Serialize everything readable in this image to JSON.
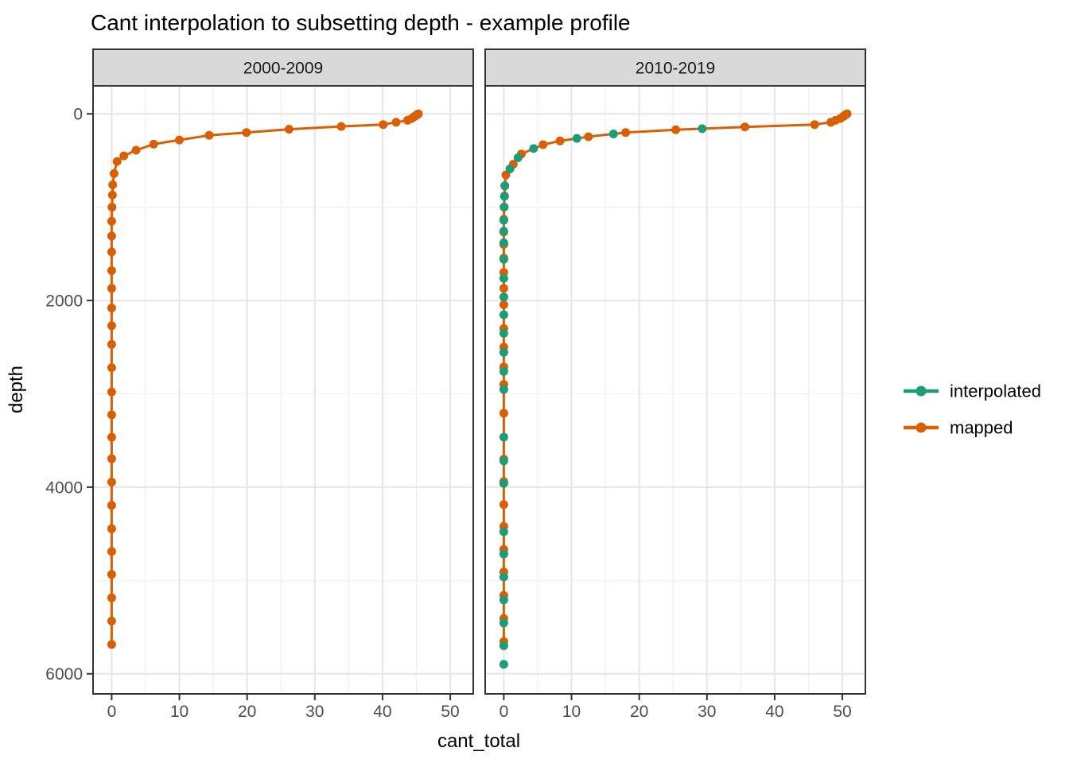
{
  "title": "Cant interpolation to subsetting depth - example profile",
  "legend": {
    "entries": [
      {
        "label": "interpolated",
        "color": "#1B9E77"
      },
      {
        "label": "mapped",
        "color": "#D95F02"
      }
    ]
  },
  "chart_data": {
    "type": "line",
    "title": "Cant interpolation to subsetting depth - example profile",
    "xlabel": "cant_total",
    "ylabel": "depth",
    "x_ticks": [
      0,
      10,
      20,
      30,
      40,
      50
    ],
    "y_ticks": [
      0,
      2000,
      4000,
      6000
    ],
    "x_minor": [
      5,
      15,
      25,
      35,
      45
    ],
    "y_minor": [
      1000,
      3000,
      5000
    ],
    "xlim": [
      -2.75,
      53.4
    ],
    "ylim": [
      -300,
      6215
    ],
    "y_axis_reversed": true,
    "grid": true,
    "legend_position": "right",
    "facets": [
      {
        "label": "2000-2009",
        "series": [
          {
            "name": "mapped",
            "color": "#D95F02",
            "line": true,
            "points": [
              [
                45.3,
                0
              ],
              [
                45.1,
                10
              ],
              [
                44.9,
                20
              ],
              [
                44.7,
                30
              ],
              [
                44.3,
                50
              ],
              [
                43.7,
                70
              ],
              [
                42.0,
                90
              ],
              [
                40.1,
                115
              ],
              [
                33.9,
                135
              ],
              [
                26.2,
                165
              ],
              [
                19.9,
                200
              ],
              [
                14.4,
                230
              ],
              [
                10.0,
                280
              ],
              [
                6.2,
                325
              ],
              [
                3.6,
                390
              ],
              [
                1.8,
                450
              ],
              [
                0.8,
                510
              ],
              [
                0.35,
                640
              ],
              [
                0.15,
                760
              ],
              [
                0.1,
                870
              ],
              [
                0.05,
                1000
              ],
              [
                0.0,
                1150
              ],
              [
                0.0,
                1310
              ],
              [
                0.0,
                1480
              ],
              [
                0.0,
                1680
              ],
              [
                0.0,
                1870
              ],
              [
                0.0,
                2080
              ],
              [
                0.0,
                2270
              ],
              [
                0.0,
                2470
              ],
              [
                0.0,
                2720
              ],
              [
                0.0,
                2980
              ],
              [
                0.0,
                3225
              ],
              [
                0.0,
                3465
              ],
              [
                0.0,
                3695
              ],
              [
                0.0,
                3945
              ],
              [
                0.0,
                4195
              ],
              [
                0.0,
                4445
              ],
              [
                0.0,
                4690
              ],
              [
                0.0,
                4935
              ],
              [
                0.0,
                5185
              ],
              [
                0.0,
                5435
              ],
              [
                0.0,
                5685
              ]
            ]
          }
        ]
      },
      {
        "label": "2010-2019",
        "series": [
          {
            "name": "mapped",
            "color": "#D95F02",
            "line": true,
            "points": [
              [
                50.7,
                0
              ],
              [
                50.5,
                10
              ],
              [
                50.3,
                20
              ],
              [
                50.1,
                30
              ],
              [
                49.7,
                50
              ],
              [
                49.0,
                70
              ],
              [
                48.3,
                90
              ],
              [
                45.9,
                115
              ],
              [
                35.6,
                140
              ],
              [
                25.4,
                170
              ],
              [
                18.0,
                200
              ],
              [
                12.5,
                245
              ],
              [
                8.3,
                290
              ],
              [
                5.8,
                330
              ],
              [
                2.6,
                430
              ],
              [
                1.4,
                540
              ],
              [
                0.3,
                655
              ],
              [
                0.15,
                770
              ],
              [
                0.1,
                880
              ],
              [
                0.05,
                1000
              ],
              [
                0.0,
                1130
              ],
              [
                0.0,
                1265
              ],
              [
                0.0,
                1400
              ],
              [
                0.0,
                1545
              ],
              [
                0.0,
                1700
              ],
              [
                0.0,
                1870
              ],
              [
                0.0,
                2045
              ],
              [
                0.0,
                2300
              ],
              [
                0.0,
                2500
              ],
              [
                0.0,
                2712
              ],
              [
                0.0,
                2900
              ],
              [
                0.0,
                3208
              ],
              [
                0.0,
                3700
              ],
              [
                0.0,
                3940
              ],
              [
                0.0,
                4187
              ],
              [
                0.0,
                4421
              ],
              [
                0.0,
                4668
              ],
              [
                0.0,
                4910
              ],
              [
                0.0,
                5160
              ],
              [
                0.0,
                5407
              ],
              [
                0.0,
                5654
              ]
            ]
          },
          {
            "name": "interpolated",
            "color": "#1B9E77",
            "line": false,
            "points": [
              [
                29.3,
                159
              ],
              [
                16.2,
                215
              ],
              [
                10.8,
                263
              ],
              [
                4.4,
                372
              ],
              [
                2.1,
                471
              ],
              [
                0.9,
                590
              ],
              [
                0.15,
                772
              ],
              [
                0.1,
                885
              ],
              [
                0.05,
                998
              ],
              [
                0.0,
                1140
              ],
              [
                0.0,
                1258
              ],
              [
                0.0,
                1382
              ],
              [
                0.0,
                1558
              ],
              [
                0.0,
                1762
              ],
              [
                0.0,
                1962
              ],
              [
                0.0,
                2153
              ],
              [
                0.0,
                2351
              ],
              [
                0.0,
                2556
              ],
              [
                0.0,
                2760
              ],
              [
                0.0,
                2953
              ],
              [
                0.0,
                3464
              ],
              [
                0.0,
                3719
              ],
              [
                0.0,
                3960
              ],
              [
                0.0,
                4478
              ],
              [
                0.0,
                4716
              ],
              [
                0.0,
                4962
              ],
              [
                0.0,
                5208
              ],
              [
                0.0,
                5455
              ],
              [
                0.0,
                5700
              ],
              [
                0.0,
                5898
              ]
            ]
          }
        ]
      }
    ]
  }
}
